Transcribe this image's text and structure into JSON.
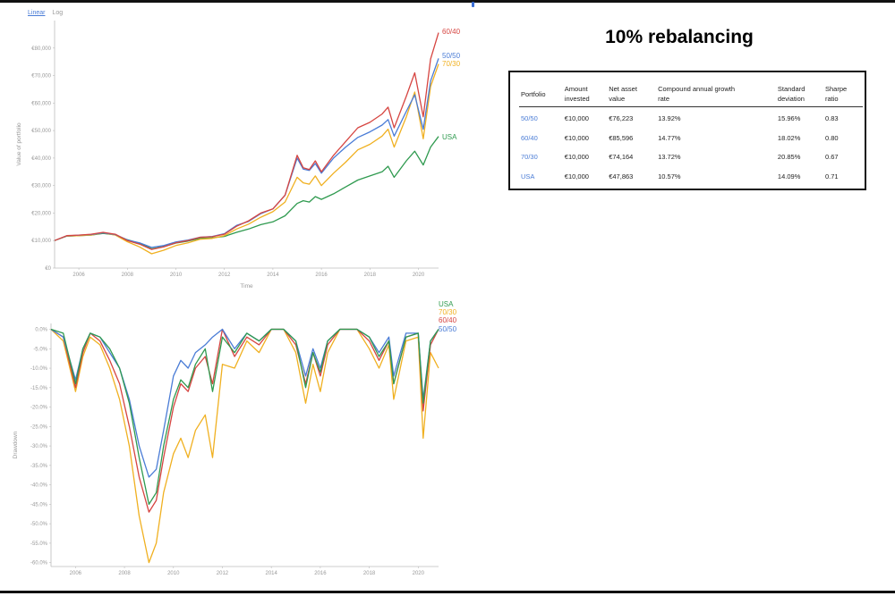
{
  "scale_toggle": {
    "linear": "Linear",
    "log": "Log"
  },
  "page_title": "10% rebalancing",
  "table": {
    "headers": [
      "Portfolio",
      "Amount invested",
      "Net asset value",
      "Compound annual growth rate",
      "Standard deviation",
      "Sharpe ratio"
    ],
    "header_lines": [
      [
        "Portfolio"
      ],
      [
        "Amount",
        "invested"
      ],
      [
        "Net asset",
        "value"
      ],
      [
        "Compound annual growth",
        "rate"
      ],
      [
        "Standard",
        "deviation"
      ],
      [
        "Sharpe",
        "ratio"
      ]
    ],
    "rows": [
      {
        "portfolio": "50/50",
        "invested": "€10,000",
        "nav": "€76,223",
        "cagr": "13.92%",
        "sd": "15.96%",
        "sharpe": "0.83"
      },
      {
        "portfolio": "60/40",
        "invested": "€10,000",
        "nav": "€85,596",
        "cagr": "14.77%",
        "sd": "18.02%",
        "sharpe": "0.80"
      },
      {
        "portfolio": "70/30",
        "invested": "€10,000",
        "nav": "€74,164",
        "cagr": "13.72%",
        "sd": "20.85%",
        "sharpe": "0.67"
      },
      {
        "portfolio": "USA",
        "invested": "€10,000",
        "nav": "€47,863",
        "cagr": "10.57%",
        "sd": "14.09%",
        "sharpe": "0.71"
      }
    ]
  },
  "colors": {
    "50/50": "#4a7cd6",
    "60/40": "#d64541",
    "70/30": "#f0b020",
    "USA": "#2f9a4f",
    "accent": "#4a7cd6"
  },
  "chart_data": [
    {
      "type": "line",
      "xlabel": "Time",
      "ylabel": "Value of portfolio",
      "xlim": [
        2005.0,
        2020.83
      ],
      "ylim": [
        0,
        90000
      ],
      "x_ticks": [
        2006,
        2008,
        2010,
        2012,
        2014,
        2016,
        2018,
        2020
      ],
      "y_ticks": [
        0,
        10000,
        20000,
        30000,
        40000,
        50000,
        60000,
        70000,
        80000
      ],
      "y_tick_labels": [
        "€0",
        "€10,000",
        "€20,000",
        "€30,000",
        "€40,000",
        "€50,000",
        "€60,000",
        "€70,000",
        "€80,000"
      ],
      "legend": "end-of-line labels",
      "series": [
        {
          "name": "50/50",
          "x": [
            2005.0,
            2005.5,
            2006.0,
            2006.5,
            2007.0,
            2007.5,
            2008.0,
            2008.5,
            2009.0,
            2009.5,
            2010.0,
            2010.5,
            2011.0,
            2011.5,
            2012.0,
            2012.5,
            2013.0,
            2013.5,
            2014.0,
            2014.5,
            2015.0,
            2015.25,
            2015.5,
            2015.75,
            2016.0,
            2016.5,
            2017.0,
            2017.5,
            2018.0,
            2018.5,
            2018.75,
            2019.0,
            2019.5,
            2019.85,
            2020.2,
            2020.5,
            2020.83
          ],
          "values": [
            10000,
            11700,
            12000,
            12200,
            12800,
            12200,
            10200,
            9200,
            7500,
            8200,
            9500,
            10200,
            11200,
            11500,
            12500,
            15500,
            17000,
            19800,
            21500,
            26500,
            40000,
            36000,
            35500,
            38000,
            34500,
            40000,
            44000,
            47500,
            49500,
            52000,
            54000,
            48000,
            57000,
            63000,
            50500,
            68000,
            76223
          ]
        },
        {
          "name": "60/40",
          "x": [
            2005.0,
            2005.5,
            2006.0,
            2006.5,
            2007.0,
            2007.5,
            2008.0,
            2008.5,
            2009.0,
            2009.5,
            2010.0,
            2010.5,
            2011.0,
            2011.5,
            2012.0,
            2012.5,
            2013.0,
            2013.5,
            2014.0,
            2014.5,
            2015.0,
            2015.25,
            2015.5,
            2015.75,
            2016.0,
            2016.5,
            2017.0,
            2017.5,
            2018.0,
            2018.5,
            2018.75,
            2019.0,
            2019.5,
            2019.85,
            2020.2,
            2020.5,
            2020.83
          ],
          "values": [
            10000,
            11800,
            12000,
            12300,
            13000,
            12300,
            10000,
            8700,
            6800,
            7700,
            9200,
            10000,
            11200,
            11400,
            12300,
            15200,
            17200,
            20000,
            21500,
            26500,
            41000,
            36500,
            35800,
            39000,
            35000,
            41000,
            46000,
            51000,
            53000,
            56000,
            58500,
            51000,
            62500,
            71000,
            55000,
            76000,
            85596
          ]
        },
        {
          "name": "70/30",
          "x": [
            2005.0,
            2005.5,
            2006.0,
            2006.5,
            2007.0,
            2007.5,
            2008.0,
            2008.5,
            2009.0,
            2009.5,
            2010.0,
            2010.5,
            2011.0,
            2011.5,
            2012.0,
            2012.5,
            2013.0,
            2013.5,
            2014.0,
            2014.5,
            2015.0,
            2015.25,
            2015.5,
            2015.75,
            2016.0,
            2016.5,
            2017.0,
            2017.5,
            2018.0,
            2018.5,
            2018.75,
            2019.0,
            2019.5,
            2019.85,
            2020.2,
            2020.5,
            2020.83
          ],
          "values": [
            10000,
            11600,
            11800,
            12000,
            12800,
            12000,
            9600,
            7700,
            5200,
            6500,
            8200,
            9200,
            10500,
            10800,
            11800,
            14200,
            16000,
            18500,
            20500,
            24000,
            33000,
            31000,
            30500,
            33500,
            30000,
            34500,
            38500,
            43000,
            45000,
            48000,
            50500,
            44000,
            55000,
            64000,
            47000,
            66000,
            74164
          ]
        },
        {
          "name": "USA",
          "x": [
            2005.0,
            2005.5,
            2006.0,
            2006.5,
            2007.0,
            2007.5,
            2008.0,
            2008.5,
            2009.0,
            2009.5,
            2010.0,
            2010.5,
            2011.0,
            2011.5,
            2012.0,
            2012.5,
            2013.0,
            2013.5,
            2014.0,
            2014.5,
            2015.0,
            2015.25,
            2015.5,
            2015.75,
            2016.0,
            2016.5,
            2017.0,
            2017.5,
            2018.0,
            2018.5,
            2018.75,
            2019.0,
            2019.5,
            2019.85,
            2020.2,
            2020.5,
            2020.83
          ],
          "values": [
            10000,
            11600,
            11800,
            12000,
            12600,
            12100,
            10300,
            9000,
            7000,
            7800,
            9100,
            9800,
            10800,
            11000,
            11500,
            13000,
            14200,
            15800,
            16800,
            19000,
            23500,
            24500,
            24000,
            26000,
            25000,
            27000,
            29500,
            32000,
            33500,
            35000,
            37000,
            33000,
            39000,
            42500,
            37500,
            44000,
            47863
          ]
        }
      ]
    },
    {
      "type": "line",
      "xlabel": "",
      "ylabel": "Drawdown",
      "xlim": [
        2005.0,
        2020.83
      ],
      "ylim": [
        -61,
        1.5
      ],
      "x_ticks": [
        2006,
        2008,
        2010,
        2012,
        2014,
        2016,
        2018,
        2020
      ],
      "y_ticks": [
        0,
        -5,
        -10,
        -15,
        -20,
        -25,
        -30,
        -35,
        -40,
        -45,
        -50,
        -55,
        -60
      ],
      "y_tick_labels": [
        "0.0%",
        "-5.0%",
        "-10.0%",
        "-15.0%",
        "-20.0%",
        "-25.0%",
        "-30.0%",
        "-35.0%",
        "-40.0%",
        "-45.0%",
        "-50.0%",
        "-55.0%",
        "-60.0%"
      ],
      "legend": "top-right stacked labels",
      "legend_order": [
        "USA",
        "70/30",
        "60/40",
        "50/50"
      ],
      "series": [
        {
          "name": "50/50",
          "x": [
            2005.0,
            2005.5,
            2006.0,
            2006.3,
            2006.6,
            2007.0,
            2007.4,
            2007.8,
            2008.2,
            2008.6,
            2009.0,
            2009.3,
            2009.6,
            2010.0,
            2010.3,
            2010.6,
            2010.9,
            2011.3,
            2011.6,
            2012.0,
            2012.5,
            2013.0,
            2013.5,
            2014.0,
            2014.5,
            2015.0,
            2015.4,
            2015.7,
            2016.0,
            2016.3,
            2016.8,
            2017.5,
            2018.0,
            2018.4,
            2018.8,
            2019.0,
            2019.5,
            2020.0,
            2020.2,
            2020.5,
            2020.83
          ],
          "values": [
            0,
            -2,
            -13,
            -5,
            -1,
            -2,
            -6,
            -10,
            -18,
            -30,
            -38,
            -36,
            -26,
            -12,
            -8,
            -10,
            -6,
            -4,
            -2,
            0,
            -5,
            -1,
            -3,
            0,
            0,
            -3,
            -12,
            -5,
            -10,
            -3,
            0,
            0,
            -2,
            -6,
            -2,
            -12,
            -1,
            -1,
            -18,
            -3,
            0
          ]
        },
        {
          "name": "60/40",
          "x": [
            2005.0,
            2005.5,
            2006.0,
            2006.3,
            2006.6,
            2007.0,
            2007.4,
            2007.8,
            2008.2,
            2008.6,
            2009.0,
            2009.3,
            2009.6,
            2010.0,
            2010.3,
            2010.6,
            2010.9,
            2011.3,
            2011.6,
            2012.0,
            2012.5,
            2013.0,
            2013.5,
            2014.0,
            2014.5,
            2015.0,
            2015.4,
            2015.7,
            2016.0,
            2016.3,
            2016.8,
            2017.5,
            2018.0,
            2018.4,
            2018.8,
            2019.0,
            2019.5,
            2020.0,
            2020.2,
            2020.5,
            2020.83
          ],
          "values": [
            0,
            -2,
            -15,
            -6,
            -1,
            -3,
            -8,
            -14,
            -25,
            -38,
            -47,
            -44,
            -33,
            -20,
            -14,
            -16,
            -10,
            -7,
            -14,
            0,
            -7,
            -2,
            -4,
            0,
            0,
            -4,
            -14,
            -6,
            -12,
            -4,
            0,
            0,
            -3,
            -8,
            -3,
            -14,
            -2,
            -1,
            -21,
            -4,
            0
          ]
        },
        {
          "name": "70/30",
          "x": [
            2005.0,
            2005.5,
            2006.0,
            2006.3,
            2006.6,
            2007.0,
            2007.4,
            2007.8,
            2008.2,
            2008.6,
            2009.0,
            2009.3,
            2009.6,
            2010.0,
            2010.3,
            2010.6,
            2010.9,
            2011.3,
            2011.6,
            2012.0,
            2012.5,
            2013.0,
            2013.5,
            2014.0,
            2014.5,
            2015.0,
            2015.4,
            2015.7,
            2016.0,
            2016.3,
            2016.8,
            2017.5,
            2018.0,
            2018.4,
            2018.8,
            2019.0,
            2019.5,
            2020.0,
            2020.2,
            2020.5,
            2020.83
          ],
          "values": [
            0,
            -3,
            -16,
            -7,
            -2,
            -4,
            -10,
            -18,
            -30,
            -48,
            -60,
            -55,
            -42,
            -32,
            -28,
            -33,
            -26,
            -22,
            -33,
            -9,
            -10,
            -3,
            -6,
            0,
            0,
            -6,
            -19,
            -9,
            -16,
            -6,
            0,
            0,
            -5,
            -10,
            -4,
            -18,
            -3,
            -2,
            -28,
            -6,
            -10
          ]
        },
        {
          "name": "USA",
          "x": [
            2005.0,
            2005.5,
            2006.0,
            2006.3,
            2006.6,
            2007.0,
            2007.4,
            2007.8,
            2008.2,
            2008.6,
            2009.0,
            2009.3,
            2009.6,
            2010.0,
            2010.3,
            2010.6,
            2010.9,
            2011.3,
            2011.6,
            2012.0,
            2012.5,
            2013.0,
            2013.5,
            2014.0,
            2014.5,
            2015.0,
            2015.4,
            2015.7,
            2016.0,
            2016.3,
            2016.8,
            2017.5,
            2018.0,
            2018.4,
            2018.8,
            2019.0,
            2019.5,
            2020.0,
            2020.2,
            2020.5,
            2020.83
          ],
          "values": [
            0,
            -1,
            -14,
            -5,
            -1,
            -2,
            -5,
            -10,
            -19,
            -33,
            -45,
            -42,
            -30,
            -18,
            -13,
            -15,
            -9,
            -5,
            -16,
            -2,
            -6,
            -1,
            -3,
            0,
            0,
            -3,
            -15,
            -6,
            -11,
            -3,
            0,
            0,
            -2,
            -7,
            -3,
            -14,
            -2,
            -1,
            -19,
            -3,
            0
          ]
        }
      ]
    }
  ]
}
